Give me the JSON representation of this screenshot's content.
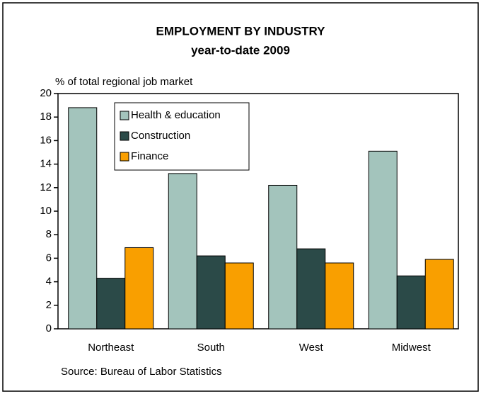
{
  "chart_data": {
    "type": "bar",
    "title": "EMPLOYMENT BY INDUSTRY",
    "subtitle": "year-to-date 2009",
    "y_label": "% of total regional job market",
    "source": "Source: Bureau of Labor Statistics",
    "categories": [
      "Northeast",
      "South",
      "West",
      "Midwest"
    ],
    "series": [
      {
        "name": "Health & education",
        "color": "#a3c4bc",
        "values": [
          18.8,
          13.2,
          12.2,
          15.1
        ]
      },
      {
        "name": "Construction",
        "color": "#2b4a48",
        "values": [
          4.3,
          6.2,
          6.8,
          4.5
        ]
      },
      {
        "name": "Finance",
        "color": "#f99f00",
        "values": [
          6.9,
          5.6,
          5.6,
          5.9
        ]
      }
    ],
    "ylim": [
      0,
      20
    ],
    "yticks": [
      0,
      2,
      4,
      6,
      8,
      10,
      12,
      14,
      16,
      18,
      20
    ],
    "grid": false,
    "legend": "upper left"
  }
}
